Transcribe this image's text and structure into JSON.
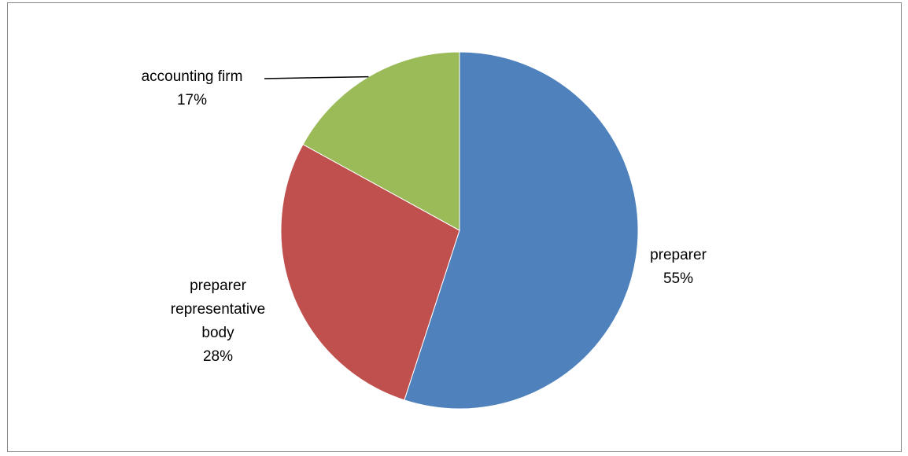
{
  "chart_data": {
    "type": "pie",
    "title": "",
    "start_angle_deg": 0,
    "direction": "clockwise",
    "slices": [
      {
        "label_lines": [
          "preparer"
        ],
        "value": 55,
        "value_label": "55%",
        "color": "#4F81BD"
      },
      {
        "label_lines": [
          "preparer",
          "representative",
          "body"
        ],
        "value": 28,
        "value_label": "28%",
        "color": "#C0504D"
      },
      {
        "label_lines": [
          "accounting firm"
        ],
        "value": 17,
        "value_label": "17%",
        "color": "#9BBB59"
      }
    ],
    "legend": "none"
  }
}
